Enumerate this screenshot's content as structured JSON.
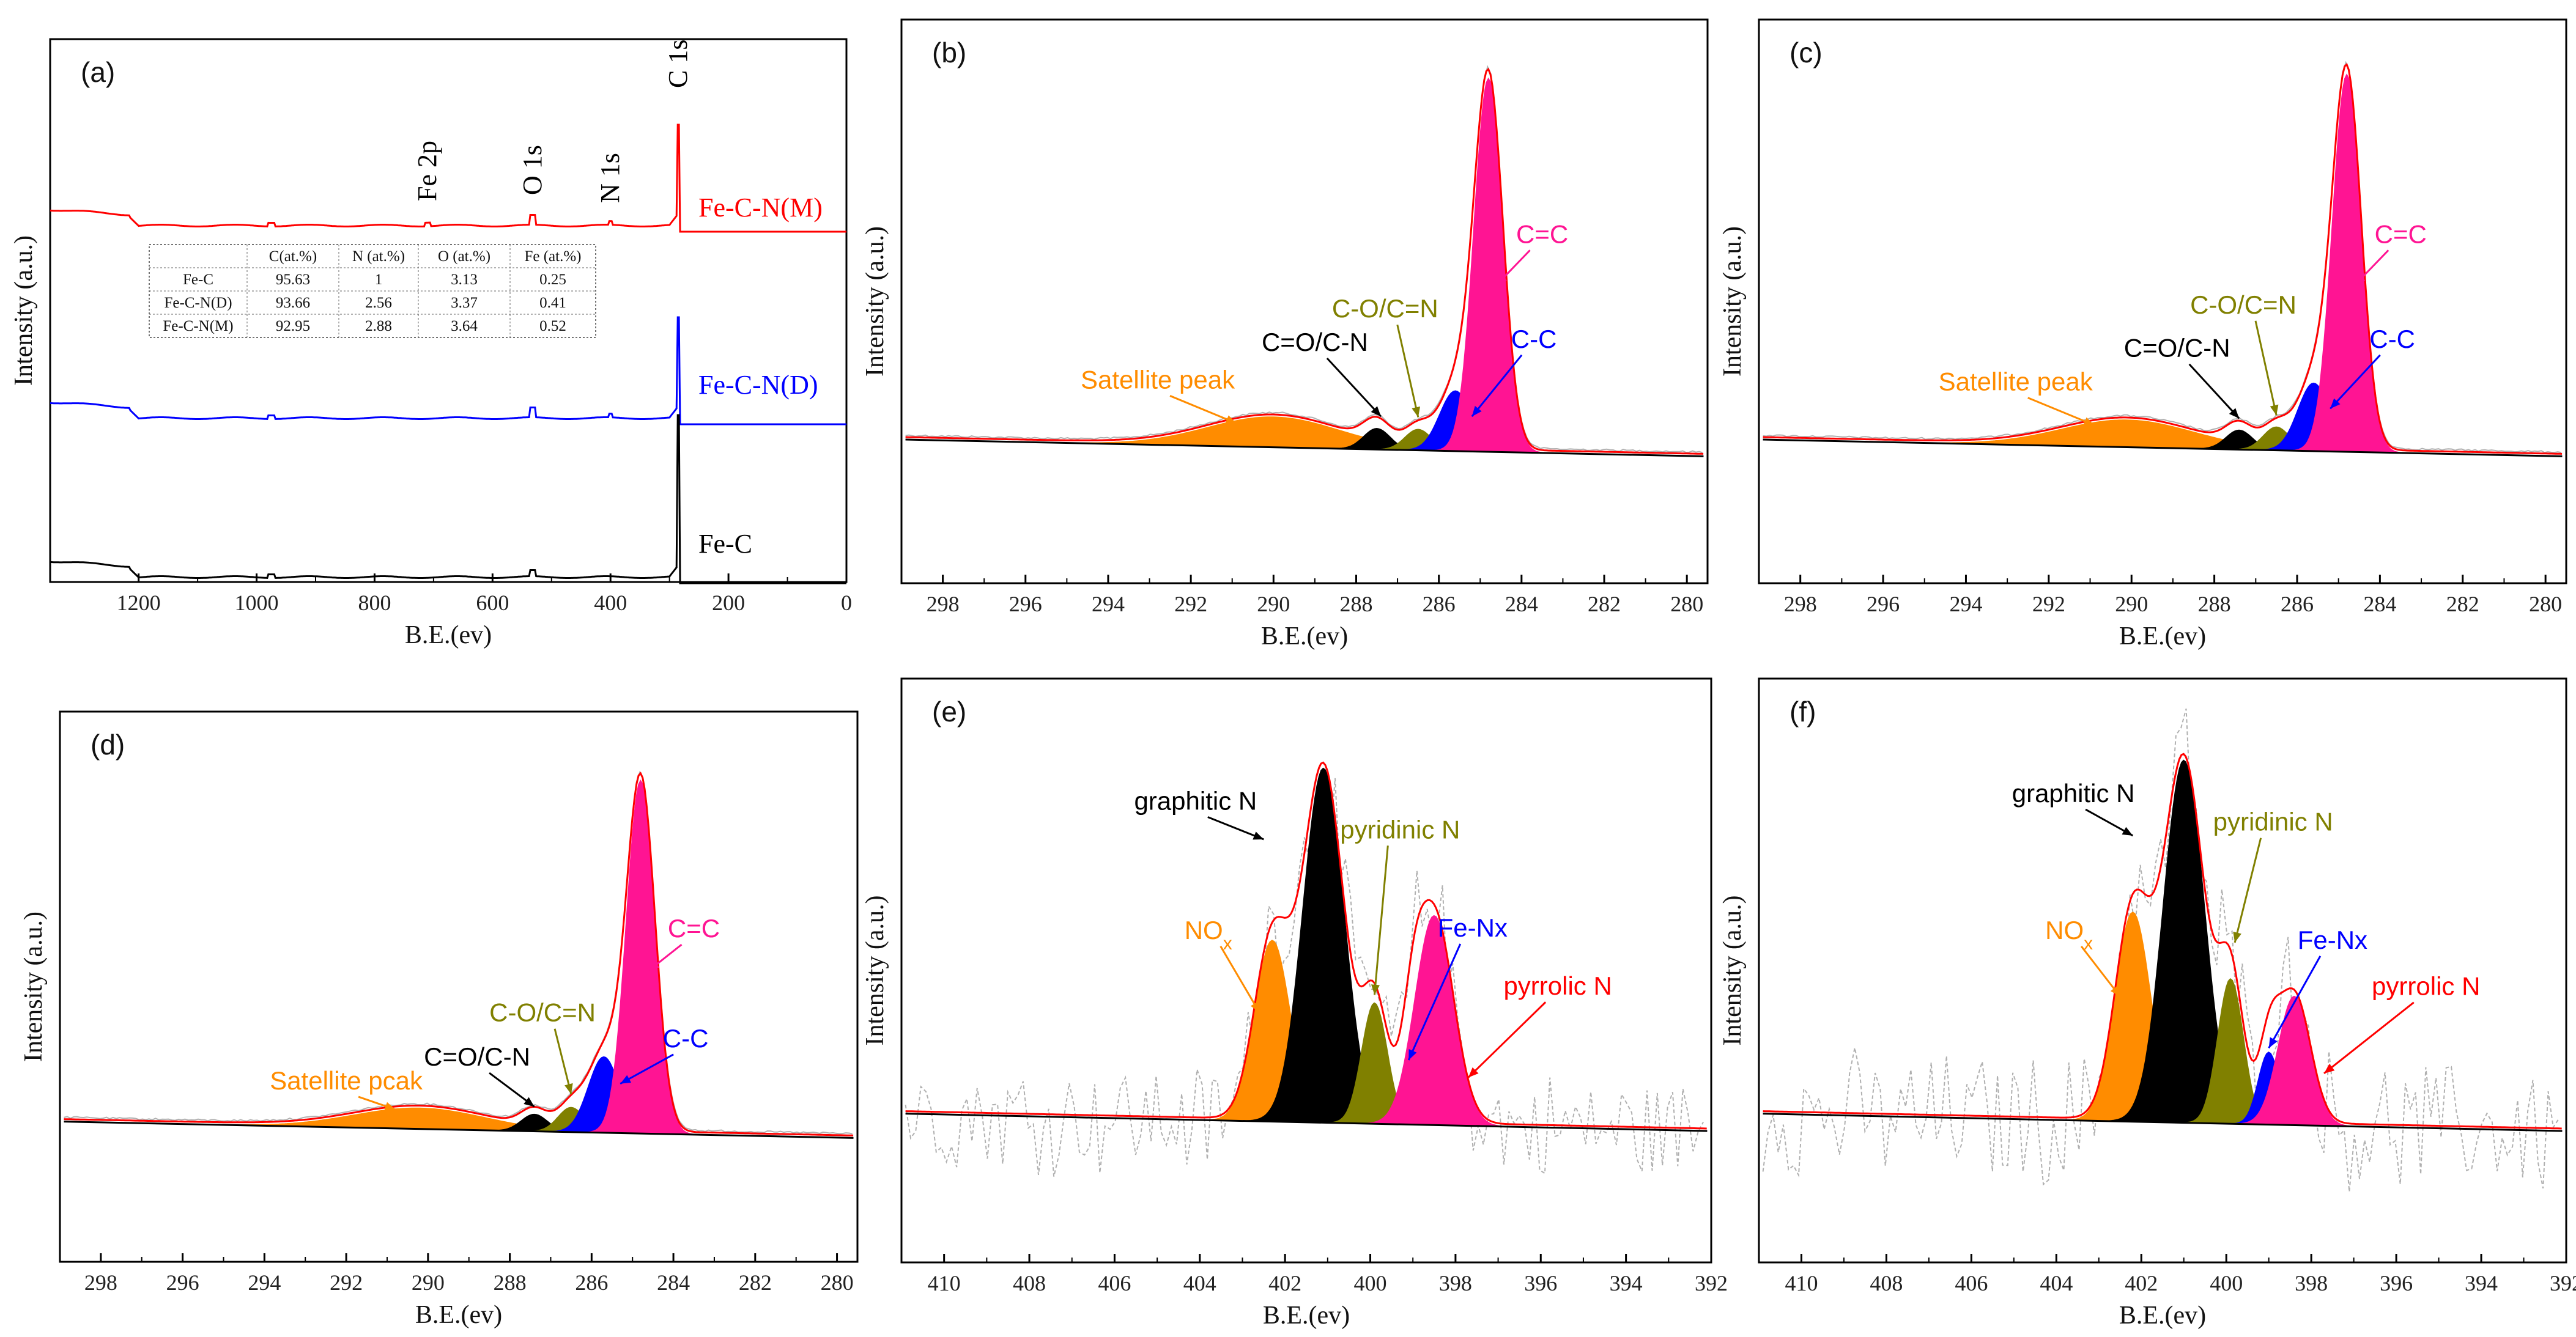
{
  "figure": {
    "colors": {
      "envelope": "#ff0000",
      "raw": "#b0b0b0",
      "baseline": "#000000",
      "orange": "#ff8c00",
      "black": "#000000",
      "olive": "#808000",
      "blue": "#0000ff",
      "magenta": "#ff1493",
      "red": "#ff0000"
    }
  },
  "chart_data": [
    {
      "id": "a",
      "type": "line",
      "panel_label": "(a)",
      "xlabel": "B.E.(ev)",
      "ylabel": "Intensity (a.u.)",
      "xlim": [
        1350,
        0
      ],
      "ticks": [
        "1200",
        "1000",
        "800",
        "600",
        "400",
        "200",
        "0"
      ],
      "tick_values": [
        1200,
        1000,
        800,
        600,
        400,
        200,
        0
      ],
      "series": [
        {
          "name": "Fe-C-N(M)",
          "color": "#ff0000"
        },
        {
          "name": "Fe-C-N(D)",
          "color": "#0000ff"
        },
        {
          "name": "Fe-C",
          "color": "#000000"
        }
      ],
      "peak_labels": [
        {
          "text": "Fe 2p",
          "x": 710
        },
        {
          "text": "O 1s",
          "x": 532
        },
        {
          "text": "N 1s",
          "x": 400
        },
        {
          "text": "C 1s",
          "x": 285
        }
      ],
      "table": {
        "headers": [
          "",
          "C(at.%)",
          "N (at.%)",
          "O (at.%)",
          "Fe (at.%)"
        ],
        "rows": [
          [
            "Fe-C",
            "95.63",
            "1",
            "3.13",
            "0.25"
          ],
          [
            "Fe-C-N(D)",
            "93.66",
            "2.56",
            "3.37",
            "0.41"
          ],
          [
            "Fe-C-N(M)",
            "92.95",
            "2.88",
            "3.64",
            "0.52"
          ]
        ]
      }
    },
    {
      "id": "b",
      "type": "area",
      "panel_label": "(b)",
      "xlabel": "B.E.(ev)",
      "ylabel": "Intensity (a.u.)",
      "xlim": [
        299,
        279.5
      ],
      "ticks": [
        "298",
        "296",
        "294",
        "292",
        "290",
        "288",
        "286",
        "284",
        "282",
        "280"
      ],
      "tick_values": [
        298,
        296,
        294,
        292,
        290,
        288,
        286,
        284,
        282,
        280
      ],
      "ymax": 1.0,
      "peaks": [
        {
          "name": "Satellite peak",
          "center": 290.0,
          "height": 0.078,
          "width": 1.6,
          "color": "#ff8c00"
        },
        {
          "name": "C=O/C-N",
          "center": 287.5,
          "height": 0.054,
          "width": 0.32,
          "color": "#000000"
        },
        {
          "name": "C-O/C=N",
          "center": 286.5,
          "height": 0.054,
          "width": 0.32,
          "color": "#808000"
        },
        {
          "name": "C-C",
          "center": 285.6,
          "height": 0.155,
          "width": 0.38,
          "color": "#0000ff"
        },
        {
          "name": "C=C",
          "center": 284.8,
          "height": 0.96,
          "width": 0.35,
          "color": "#ff1493"
        }
      ],
      "annotations": [
        {
          "text": "Satellite peak",
          "x": 292.8,
          "y": 0.145,
          "ax": 290.9,
          "ay": 0.06,
          "color": "#ff8c00"
        },
        {
          "text": "C=O/C-N",
          "x": 289.0,
          "y": 0.25,
          "ax": 287.4,
          "ay": 0.085,
          "color": "#000000"
        },
        {
          "text": "C-O/C=N",
          "x": 287.3,
          "y": 0.34,
          "ax": 286.5,
          "ay": 0.085,
          "color": "#808000"
        },
        {
          "text": "C-C",
          "x": 283.7,
          "y": 0.27,
          "ax": 285.2,
          "ay": 0.09,
          "color": "#0000ff"
        },
        {
          "text": "C=C",
          "x": 283.5,
          "y": 0.54,
          "ax": 284.6,
          "ay": 0.43,
          "color": "#ff1493"
        }
      ]
    },
    {
      "id": "c",
      "type": "area",
      "panel_label": "(c)",
      "xlabel": "B.E.(ev)",
      "ylabel": "Intensity (a.u.)",
      "xlim": [
        299,
        279.5
      ],
      "ticks": [
        "298",
        "296",
        "294",
        "292",
        "290",
        "288",
        "286",
        "284",
        "282",
        "280"
      ],
      "tick_values": [
        298,
        296,
        294,
        292,
        290,
        288,
        286,
        284,
        282,
        280
      ],
      "ymax": 1.0,
      "peaks": [
        {
          "name": "Satellite peak",
          "center": 290.1,
          "height": 0.07,
          "width": 1.6,
          "color": "#ff8c00"
        },
        {
          "name": "C=O/C-N",
          "center": 287.4,
          "height": 0.05,
          "width": 0.32,
          "color": "#000000"
        },
        {
          "name": "C-O/C=N",
          "center": 286.5,
          "height": 0.06,
          "width": 0.32,
          "color": "#808000"
        },
        {
          "name": "C-C",
          "center": 285.6,
          "height": 0.175,
          "width": 0.38,
          "color": "#0000ff"
        },
        {
          "name": "C=C",
          "center": 284.8,
          "height": 0.97,
          "width": 0.35,
          "color": "#ff1493"
        }
      ],
      "annotations": [
        {
          "text": "Satellite peak",
          "x": 292.8,
          "y": 0.14,
          "ax": 290.9,
          "ay": 0.055,
          "color": "#ff8c00"
        },
        {
          "text": "C=O/C-N",
          "x": 288.9,
          "y": 0.235,
          "ax": 287.4,
          "ay": 0.08,
          "color": "#000000"
        },
        {
          "text": "C-O/C=N",
          "x": 287.3,
          "y": 0.35,
          "ax": 286.5,
          "ay": 0.09,
          "color": "#808000"
        },
        {
          "text": "C-C",
          "x": 283.7,
          "y": 0.27,
          "ax": 285.2,
          "ay": 0.11,
          "color": "#0000ff"
        },
        {
          "text": "C=C",
          "x": 283.5,
          "y": 0.54,
          "ax": 284.6,
          "ay": 0.43,
          "color": "#ff1493"
        }
      ]
    },
    {
      "id": "d",
      "type": "area",
      "panel_label": "(d)",
      "xlabel": "B.E.(ev)",
      "ylabel": "Intensity (a.u.)",
      "xlim": [
        299,
        279.5
      ],
      "ticks": [
        "298",
        "296",
        "294",
        "292",
        "290",
        "288",
        "286",
        "284",
        "282",
        "280"
      ],
      "tick_values": [
        298,
        296,
        294,
        292,
        290,
        288,
        286,
        284,
        282,
        280
      ],
      "ymax": 1.0,
      "peaks": [
        {
          "name": "Satellite peak",
          "center": 290.2,
          "height": 0.055,
          "width": 1.6,
          "color": "#ff8c00"
        },
        {
          "name": "C=O/C-N",
          "center": 287.4,
          "height": 0.045,
          "width": 0.32,
          "color": "#000000"
        },
        {
          "name": "C-O/C=N",
          "center": 286.5,
          "height": 0.065,
          "width": 0.32,
          "color": "#808000"
        },
        {
          "name": "C-C",
          "center": 285.7,
          "height": 0.2,
          "width": 0.38,
          "color": "#0000ff"
        },
        {
          "name": "C=C",
          "center": 284.8,
          "height": 0.93,
          "width": 0.35,
          "color": "#ff1493"
        }
      ],
      "annotations": [
        {
          "text": "Satellite pcak",
          "x": 292.0,
          "y": 0.1,
          "ax": 290.8,
          "ay": 0.05,
          "color": "#ff8c00"
        },
        {
          "text": "C=O/C-N",
          "x": 288.8,
          "y": 0.17,
          "ax": 287.4,
          "ay": 0.065,
          "color": "#000000"
        },
        {
          "text": "C-O/C=N",
          "x": 287.2,
          "y": 0.29,
          "ax": 286.5,
          "ay": 0.1,
          "color": "#808000"
        },
        {
          "text": "C-C",
          "x": 283.7,
          "y": 0.23,
          "ax": 285.3,
          "ay": 0.13,
          "color": "#0000ff"
        },
        {
          "text": "C=C",
          "x": 283.5,
          "y": 0.52,
          "ax": 284.6,
          "ay": 0.43,
          "color": "#ff1493"
        }
      ]
    },
    {
      "id": "e",
      "type": "area",
      "panel_label": "(e)",
      "xlabel": "B.E.(ev)",
      "ylabel": "Intensity (a.u.)",
      "xlim": [
        411,
        392
      ],
      "ticks": [
        "410",
        "408",
        "406",
        "404",
        "402",
        "400",
        "398",
        "396",
        "394",
        "392"
      ],
      "tick_values": [
        410,
        408,
        406,
        404,
        402,
        400,
        398,
        396,
        394,
        392
      ],
      "ymax": 1.0,
      "noise": 0.12,
      "peaks": [
        {
          "name": "NOx",
          "center": 402.3,
          "height": 0.45,
          "width": 0.42,
          "color": "#ff8c00"
        },
        {
          "name": "graphitic N",
          "center": 401.1,
          "height": 0.88,
          "width": 0.48,
          "color": "#000000"
        },
        {
          "name": "pyridinic N",
          "center": 399.9,
          "height": 0.3,
          "width": 0.3,
          "color": "#808000"
        },
        {
          "name": "Fe-Nx",
          "center": 399.0,
          "height": 0.16,
          "width": 0.25,
          "color": "#0000ff"
        },
        {
          "name": "pyrrolic N",
          "center": 398.5,
          "height": 0.52,
          "width": 0.45,
          "color": "#ff1493"
        }
      ],
      "annotations": [
        {
          "text": "graphitic N",
          "x": 404.1,
          "y": 0.77,
          "ax": 402.5,
          "ay": 0.7,
          "color": "#000000"
        },
        {
          "text": "pyridinic N",
          "x": 399.3,
          "y": 0.71,
          "ax": 399.9,
          "ay": 0.32,
          "color": "#808000"
        },
        {
          "text": "NO",
          "sub": "x",
          "x": 403.8,
          "y": 0.45,
          "ax": 402.6,
          "ay": 0.27,
          "color": "#ff8c00"
        },
        {
          "text": "Fe-Nx",
          "x": 397.6,
          "y": 0.47,
          "ax": 399.1,
          "ay": 0.16,
          "color": "#0000ff"
        },
        {
          "text": "pyrrolic N",
          "x": 395.6,
          "y": 0.33,
          "ax": 397.7,
          "ay": 0.12,
          "color": "#ff0000"
        }
      ]
    },
    {
      "id": "f",
      "type": "area",
      "panel_label": "(f)",
      "xlabel": "B.E.(ev)",
      "ylabel": "Intensity (a.u.)",
      "xlim": [
        411,
        392
      ],
      "ticks": [
        "410",
        "408",
        "406",
        "404",
        "402",
        "400",
        "398",
        "396",
        "394",
        "392"
      ],
      "tick_values": [
        410,
        408,
        406,
        404,
        402,
        400,
        398,
        396,
        394,
        392
      ],
      "ymax": 1.0,
      "noise": 0.14,
      "peaks": [
        {
          "name": "NOx",
          "center": 402.2,
          "height": 0.52,
          "width": 0.42,
          "color": "#ff8c00"
        },
        {
          "name": "graphitic N",
          "center": 401.0,
          "height": 0.9,
          "width": 0.48,
          "color": "#000000"
        },
        {
          "name": "pyridinic N",
          "center": 399.9,
          "height": 0.36,
          "width": 0.3,
          "color": "#808000"
        },
        {
          "name": "Fe-Nx",
          "center": 399.0,
          "height": 0.18,
          "width": 0.25,
          "color": "#0000ff"
        },
        {
          "name": "pyrrolic N",
          "center": 398.4,
          "height": 0.32,
          "width": 0.38,
          "color": "#ff1493"
        }
      ],
      "annotations": [
        {
          "text": "graphitic N",
          "x": 403.6,
          "y": 0.79,
          "ax": 402.2,
          "ay": 0.71,
          "color": "#000000"
        },
        {
          "text": "pyridinic N",
          "x": 398.9,
          "y": 0.73,
          "ax": 399.8,
          "ay": 0.45,
          "color": "#808000"
        },
        {
          "text": "NO",
          "sub": "x",
          "x": 403.7,
          "y": 0.45,
          "ax": 402.5,
          "ay": 0.31,
          "color": "#ff8c00"
        },
        {
          "text": "Fe-Nx",
          "x": 397.5,
          "y": 0.44,
          "ax": 399.0,
          "ay": 0.19,
          "color": "#0000ff"
        },
        {
          "text": "pyrrolic N",
          "x": 395.3,
          "y": 0.33,
          "ax": 397.7,
          "ay": 0.13,
          "color": "#ff0000"
        }
      ]
    }
  ]
}
